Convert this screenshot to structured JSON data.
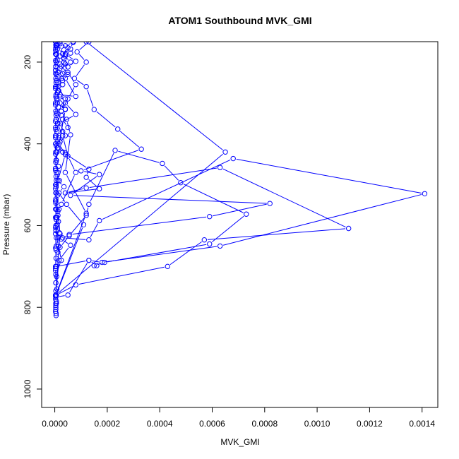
{
  "chart_data": {
    "type": "line",
    "title": "ATOM1 Southbound MVK_GMI",
    "xlabel": "MVK_GMI",
    "ylabel": "Pressure (mbar)",
    "xlim": [
      -5e-05,
      0.00146
    ],
    "ylim": [
      1045,
      150
    ],
    "y_reversed": true,
    "grid": false,
    "legend": "none",
    "series_color": "#0000ff",
    "xticks": [
      {
        "value": 0.0,
        "label": "0.0000"
      },
      {
        "value": 0.0002,
        "label": "0.0002"
      },
      {
        "value": 0.0004,
        "label": "0.0004"
      },
      {
        "value": 0.0006,
        "label": "0.0006"
      },
      {
        "value": 0.0008,
        "label": "0.0008"
      },
      {
        "value": 0.001,
        "label": "0.0010"
      },
      {
        "value": 0.0012,
        "label": "0.0012"
      },
      {
        "value": 0.0014,
        "label": "0.0014"
      }
    ],
    "yticks": [
      {
        "value": 200,
        "label": "200"
      },
      {
        "value": 400,
        "label": "400"
      },
      {
        "value": 600,
        "label": "600"
      },
      {
        "value": 800,
        "label": "800"
      },
      {
        "value": 1000,
        "label": "1000"
      }
    ],
    "series": [
      {
        "points": [
          [
            5e-06,
            820
          ],
          [
            3e-06,
            810
          ],
          [
            4e-06,
            795
          ],
          [
            3e-06,
            780
          ],
          [
            6e-06,
            770
          ],
          [
            8e-05,
            745
          ],
          [
            0.00043,
            700
          ],
          [
            0.00057,
            635
          ],
          [
            0.00112,
            607
          ],
          [
            0.00063,
            458
          ],
          [
            0.00012,
            508
          ],
          [
            4e-05,
            520
          ],
          [
            0.00017,
            510
          ],
          [
            0.00012,
            482
          ],
          [
            0.00013,
            462
          ],
          [
            3e-05,
            420
          ],
          [
            4e-05,
            422
          ],
          [
            1e-05,
            410
          ],
          [
            2e-05,
            395
          ],
          [
            1.5e-05,
            380
          ],
          [
            3e-05,
            370
          ],
          [
            5e-05,
            360
          ],
          [
            3e-05,
            340
          ],
          [
            2.5e-05,
            330
          ],
          [
            4e-05,
            315
          ],
          [
            1e-05,
            300
          ],
          [
            2e-05,
            285
          ],
          [
            1.5e-05,
            270
          ],
          [
            3e-05,
            255
          ],
          [
            2.5e-05,
            240
          ],
          [
            1.2e-05,
            225
          ],
          [
            2.5e-05,
            210
          ],
          [
            3.5e-05,
            200
          ],
          [
            4e-05,
            185
          ],
          [
            3.5e-05,
            170
          ],
          [
            5e-06,
            160
          ],
          [
            2e-05,
            150
          ]
        ]
      },
      {
        "points": [
          [
            4e-06,
            775
          ],
          [
            5e-05,
            770
          ],
          [
            0.00013,
            685
          ],
          [
            0.00018,
            690
          ],
          [
            0.00063,
            650
          ],
          [
            0.00141,
            522
          ],
          [
            0.00068,
            436
          ],
          [
            0.00017,
            588
          ],
          [
            0.00013,
            635
          ],
          [
            3e-05,
            630
          ],
          [
            1.8e-05,
            618
          ],
          [
            1.4e-05,
            590
          ],
          [
            8e-06,
            580
          ],
          [
            1.6e-05,
            560
          ],
          [
            4e-06,
            545
          ],
          [
            1.2e-05,
            525
          ],
          [
            5e-06,
            505
          ],
          [
            1.8e-05,
            490
          ],
          [
            6e-06,
            470
          ],
          [
            1.4e-05,
            455
          ],
          [
            5e-06,
            440
          ],
          [
            9e-06,
            420
          ],
          [
            4e-06,
            400
          ],
          [
            1.6e-05,
            385
          ],
          [
            8e-06,
            370
          ],
          [
            1.2e-05,
            350
          ],
          [
            5e-06,
            330
          ],
          [
            1.4e-05,
            310
          ],
          [
            7e-06,
            290
          ],
          [
            1.2e-05,
            270
          ],
          [
            5e-06,
            250
          ],
          [
            8e-06,
            230
          ],
          [
            4e-06,
            210
          ],
          [
            9e-06,
            195
          ],
          [
            5e-06,
            175
          ],
          [
            8e-06,
            160
          ],
          [
            4e-06,
            150
          ]
        ]
      },
      {
        "points": [
          [
            5e-06,
            815
          ],
          [
            4e-06,
            800
          ],
          [
            6e-06,
            785
          ],
          [
            3e-06,
            770
          ],
          [
            8e-06,
            755
          ],
          [
            4e-06,
            740
          ],
          [
            7e-06,
            725
          ],
          [
            3e-06,
            710
          ],
          [
            6e-06,
            700
          ],
          [
            0.00013,
            685
          ],
          [
            0.00016,
            698
          ],
          [
            0.00015,
            698
          ],
          [
            0.00019,
            690
          ],
          [
            0.00059,
            645
          ],
          [
            0.00073,
            572
          ],
          [
            0.00048,
            495
          ],
          [
            0.00041,
            448
          ],
          [
            0.00023,
            416
          ],
          [
            0.00013,
            548
          ],
          [
            0.00012,
            575
          ],
          [
            5.5e-05,
            625
          ],
          [
            2e-05,
            653
          ],
          [
            1.2e-05,
            665
          ],
          [
            6e-06,
            650
          ],
          [
            1.4e-05,
            630
          ],
          [
            4e-06,
            612
          ],
          [
            9e-06,
            598
          ],
          [
            3e-06,
            580
          ],
          [
            7e-06,
            560
          ],
          [
            4e-06,
            540
          ],
          [
            6e-06,
            520
          ],
          [
            3e-06,
            500
          ],
          [
            5e-06,
            480
          ],
          [
            3e-06,
            460
          ],
          [
            6e-06,
            440
          ],
          [
            4e-06,
            420
          ],
          [
            3e-06,
            400
          ],
          [
            5e-06,
            380
          ],
          [
            3e-06,
            360
          ],
          [
            5e-06,
            340
          ],
          [
            4e-06,
            320
          ],
          [
            3e-06,
            300
          ],
          [
            5e-06,
            280
          ],
          [
            3e-06,
            260
          ],
          [
            4e-06,
            240
          ],
          [
            3e-06,
            220
          ],
          [
            5e-06,
            200
          ],
          [
            3e-06,
            180
          ],
          [
            4e-06,
            165
          ],
          [
            3e-06,
            150
          ]
        ]
      },
      {
        "points": [
          [
            4e-06,
            805
          ],
          [
            6e-06,
            790
          ],
          [
            3e-06,
            772
          ],
          [
            1.6e-05,
            685
          ],
          [
            6e-05,
            648
          ],
          [
            2.5e-05,
            633
          ],
          [
            5.5e-05,
            622
          ],
          [
            0.00059,
            578
          ],
          [
            0.00082,
            546
          ],
          [
            6e-05,
            526
          ],
          [
            0.00017,
            475
          ],
          [
            0.0001,
            466
          ],
          [
            0.00033,
            413
          ],
          [
            0.00024,
            364
          ],
          [
            0.00015,
            316
          ],
          [
            0.00012,
            260
          ],
          [
            7.5e-05,
            240
          ],
          [
            0.00012,
            200
          ],
          [
            8.5e-05,
            175
          ],
          [
            0.00013,
            150
          ]
        ]
      },
      {
        "points": [
          [
            4e-06,
            790
          ],
          [
            5e-06,
            770
          ],
          [
            0.00011,
            598
          ],
          [
            4.5e-05,
            548
          ],
          [
            1.6e-05,
            520
          ],
          [
            3.5e-05,
            505
          ],
          [
            1.2e-05,
            490
          ],
          [
            4e-05,
            426
          ],
          [
            1.6e-05,
            400
          ],
          [
            4e-05,
            380
          ],
          [
            2e-05,
            350
          ],
          [
            8e-05,
            328
          ],
          [
            4e-05,
            300
          ],
          [
            2e-05,
            280
          ],
          [
            8e-05,
            284
          ],
          [
            4e-05,
            240
          ],
          [
            2e-05,
            215
          ],
          [
            6e-05,
            200
          ],
          [
            3e-05,
            180
          ],
          [
            5e-05,
            165
          ],
          [
            2e-05,
            155
          ]
        ]
      },
      {
        "points": [
          [
            4e-06,
            770
          ],
          [
            0.00012,
            570
          ],
          [
            4e-05,
            470
          ],
          [
            6e-05,
            378
          ],
          [
            4.5e-05,
            340
          ],
          [
            2.5e-05,
            320
          ],
          [
            4e-05,
            290
          ],
          [
            1.2e-05,
            260
          ],
          [
            3e-05,
            245
          ],
          [
            5e-05,
            230
          ],
          [
            2e-05,
            205
          ],
          [
            3.5e-05,
            192
          ],
          [
            6e-05,
            178
          ],
          [
            4e-05,
            160
          ],
          [
            7e-05,
            152
          ]
        ]
      },
      {
        "points": [
          [
            4e-06,
            760
          ],
          [
            2e-05,
            620
          ],
          [
            1.2e-05,
            565
          ],
          [
            2.5e-05,
            548
          ],
          [
            8e-05,
            470
          ],
          [
            5e-05,
            430
          ],
          [
            3e-05,
            380
          ],
          [
            1e-05,
            350
          ],
          [
            2.5e-05,
            320
          ],
          [
            5e-05,
            290
          ],
          [
            8e-05,
            255
          ],
          [
            5e-05,
            225
          ],
          [
            4e-05,
            205
          ],
          [
            2e-05,
            185
          ],
          [
            6e-05,
            168
          ],
          [
            7e-05,
            150
          ]
        ]
      },
      {
        "points": [
          [
            4e-06,
            720
          ],
          [
            2.5e-05,
            685
          ],
          [
            1.4e-05,
            650
          ],
          [
            4e-06,
            600
          ],
          [
            1.2e-05,
            575
          ],
          [
            4e-06,
            520
          ],
          [
            1.2e-05,
            470
          ],
          [
            4e-06,
            445
          ],
          [
            1.4e-05,
            410
          ],
          [
            4e-05,
            316
          ],
          [
            2e-05,
            300
          ],
          [
            1e-05,
            275
          ],
          [
            1.2e-05,
            250
          ],
          [
            3e-05,
            228
          ],
          [
            5e-05,
            212
          ],
          [
            8e-05,
            198
          ],
          [
            4e-05,
            180
          ],
          [
            1e-05,
            168
          ],
          [
            1.2e-05,
            155
          ]
        ]
      },
      {
        "points": [
          [
            4e-06,
            740
          ],
          [
            3e-06,
            700
          ],
          [
            5e-06,
            660
          ],
          [
            3e-06,
            620
          ],
          [
            6e-06,
            580
          ],
          [
            3e-06,
            540
          ],
          [
            5e-06,
            500
          ],
          [
            3e-06,
            460
          ],
          [
            5e-06,
            420
          ],
          [
            3e-06,
            380
          ],
          [
            5e-06,
            340
          ],
          [
            3e-06,
            300
          ],
          [
            5e-06,
            260
          ],
          [
            3e-06,
            220
          ],
          [
            5e-06,
            180
          ],
          [
            3e-06,
            150
          ]
        ]
      },
      {
        "points": [
          [
            4e-06,
            770
          ],
          [
            0.00065,
            420
          ],
          [
            0.00012,
            150
          ]
        ]
      },
      {
        "points": [
          [
            3e-06,
            705
          ],
          [
            5e-06,
            680
          ],
          [
            3e-06,
            655
          ],
          [
            6e-06,
            630
          ],
          [
            3e-06,
            605
          ],
          [
            5e-06,
            585
          ],
          [
            3e-06,
            560
          ],
          [
            4e-06,
            535
          ],
          [
            3e-06,
            510
          ],
          [
            6e-06,
            490
          ],
          [
            3e-06,
            465
          ],
          [
            4e-06,
            445
          ],
          [
            3e-06,
            425
          ],
          [
            6e-06,
            405
          ],
          [
            3e-06,
            385
          ],
          [
            4e-06,
            365
          ],
          [
            3e-06,
            345
          ],
          [
            6e-06,
            325
          ],
          [
            3e-06,
            305
          ],
          [
            4e-06,
            285
          ],
          [
            3e-06,
            265
          ],
          [
            6e-06,
            245
          ],
          [
            3e-06,
            228
          ],
          [
            4e-06,
            212
          ],
          [
            3e-06,
            196
          ],
          [
            6e-06,
            182
          ],
          [
            3e-06,
            170
          ],
          [
            4e-06,
            158
          ]
        ]
      }
    ]
  }
}
